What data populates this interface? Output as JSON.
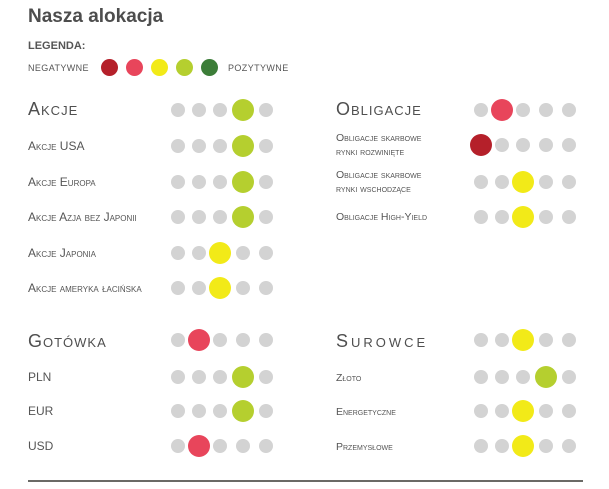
{
  "title": "Nasza alokacja",
  "legend": {
    "label": "LEGENDA:",
    "negative": "NEGATYWNE",
    "positive": "POZYTYWNE",
    "colors": [
      "#b5202a",
      "#e8455b",
      "#f2ea18",
      "#b5cf2f",
      "#3c7d38"
    ]
  },
  "colors": {
    "neutral_dot": "#d3d3d3",
    "level": [
      "#b5202a",
      "#e8455b",
      "#f2ea18",
      "#b5cf2f",
      "#3c7d38"
    ]
  },
  "sections": {
    "akcje": {
      "heading": {
        "label": "Akcje",
        "level": 4
      },
      "rows": [
        {
          "label": "Akcje USA",
          "level": 4
        },
        {
          "label": "Akcje Europa",
          "level": 4
        },
        {
          "label": "Akcje Azja bez Japonii",
          "level": 4
        },
        {
          "label": "Akcje Japonia",
          "level": 3
        },
        {
          "label": "Akcje ameryka łacińska",
          "level": 3
        }
      ]
    },
    "obligacje": {
      "heading": {
        "label": "Obligacje",
        "level": 2
      },
      "rows": [
        {
          "label_line1": "Obligacje skarbowe",
          "label_line2": "rynki rozwinięte",
          "level": 1
        },
        {
          "label_line1": "Obligacje skarbowe",
          "label_line2": "rynki wschodzące",
          "level": 3
        },
        {
          "label": "Obligacje High-Yield",
          "level": 3
        }
      ]
    },
    "gotowka": {
      "heading": {
        "label": "Gotówka",
        "level": 2
      },
      "rows": [
        {
          "label": "PLN",
          "level": 4
        },
        {
          "label": "EUR",
          "level": 4
        },
        {
          "label": "USD",
          "level": 2
        }
      ]
    },
    "surowce": {
      "heading": {
        "label": "Surowce",
        "level": 3
      },
      "rows": [
        {
          "label": "Złoto",
          "level": 4
        },
        {
          "label": "Energetyczne",
          "level": 3
        },
        {
          "label": "Przemysłowe",
          "level": 3
        }
      ]
    }
  }
}
